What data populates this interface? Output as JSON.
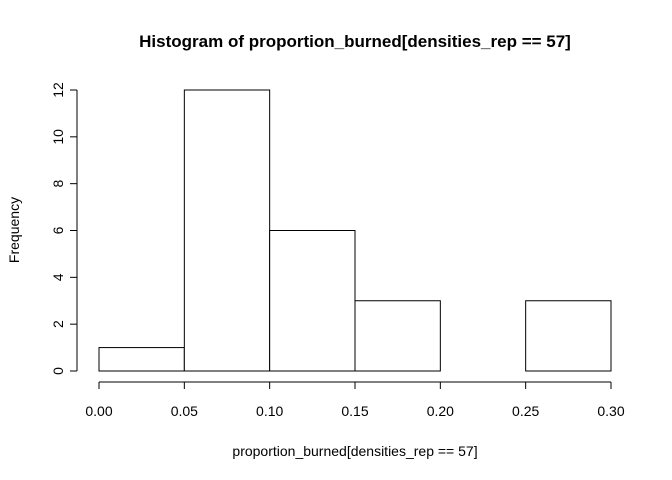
{
  "chart_data": {
    "type": "bar",
    "subtype": "histogram",
    "title": "Histogram of proportion_burned[densities_rep == 57]",
    "xlabel": "proportion_burned[densities_rep == 57]",
    "ylabel": "Frequency",
    "bins": [
      {
        "start": 0.0,
        "end": 0.05,
        "value": 1
      },
      {
        "start": 0.05,
        "end": 0.1,
        "value": 12
      },
      {
        "start": 0.1,
        "end": 0.15,
        "value": 6
      },
      {
        "start": 0.15,
        "end": 0.2,
        "value": 3
      },
      {
        "start": 0.2,
        "end": 0.25,
        "value": 0
      },
      {
        "start": 0.25,
        "end": 0.3,
        "value": 3
      }
    ],
    "xlim": [
      0.0,
      0.3
    ],
    "ylim": [
      0,
      12
    ],
    "xticks": [
      "0.00",
      "0.05",
      "0.10",
      "0.15",
      "0.20",
      "0.25",
      "0.30"
    ],
    "yticks": [
      "0",
      "2",
      "4",
      "6",
      "8",
      "10",
      "12"
    ],
    "grid": false,
    "bar_fill": "#ffffff",
    "bar_stroke": "#000000"
  }
}
